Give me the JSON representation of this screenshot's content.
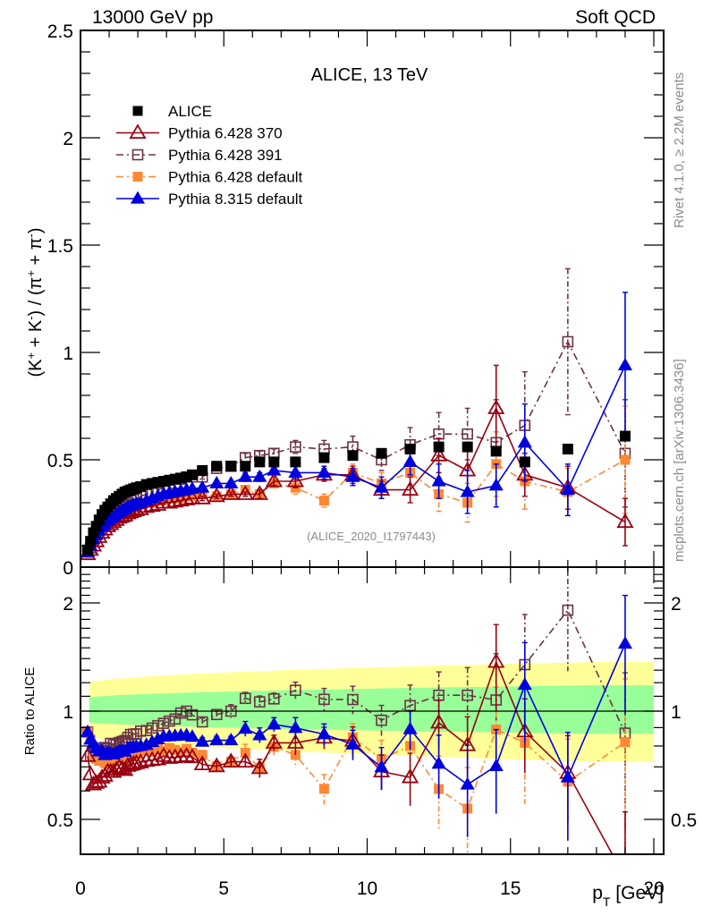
{
  "header": {
    "left": "13000 GeV pp",
    "right": "Soft QCD",
    "side_top": "Rivet 4.1.0, ≥ 2.2M events",
    "side_bottom": "mcplots.cern.ch [arXiv:1306.3436]"
  },
  "chart_data": [
    {
      "type": "scatter",
      "panel": "main",
      "title": "ALICE, 13 TeV",
      "analysis_label": "(ALICE_2020_I1797443)",
      "xlabel": "p_T [GeV]",
      "ylabel": "(K⁺ + K⁻) / (π⁺ + π⁻)",
      "xlim": [
        0,
        20.35
      ],
      "ylim": [
        0,
        2.5
      ],
      "yticks": [
        "0",
        "0.5",
        "1",
        "1.5",
        "2",
        "2.5"
      ],
      "xticks": [
        "0",
        "5",
        "10",
        "15",
        "20"
      ],
      "legend_position": "top-left",
      "series": [
        {
          "name": "ALICE",
          "style": "data",
          "color": "#000000",
          "marker": "filled-square",
          "x": [
            0.25,
            0.35,
            0.45,
            0.55,
            0.65,
            0.75,
            0.85,
            0.95,
            1.05,
            1.15,
            1.25,
            1.35,
            1.45,
            1.55,
            1.65,
            1.75,
            1.85,
            1.95,
            2.1,
            2.3,
            2.5,
            2.7,
            2.9,
            3.1,
            3.3,
            3.5,
            3.7,
            3.9,
            4.25,
            4.75,
            5.25,
            5.75,
            6.25,
            6.75,
            7.5,
            8.5,
            9.5,
            10.5,
            11.5,
            12.5,
            13.5,
            14.5,
            15.5,
            17,
            19
          ],
          "y": [
            0.08,
            0.12,
            0.16,
            0.19,
            0.22,
            0.245,
            0.265,
            0.28,
            0.295,
            0.31,
            0.32,
            0.33,
            0.34,
            0.35,
            0.355,
            0.36,
            0.365,
            0.37,
            0.375,
            0.385,
            0.39,
            0.395,
            0.4,
            0.405,
            0.41,
            0.415,
            0.42,
            0.43,
            0.45,
            0.47,
            0.47,
            0.47,
            0.49,
            0.49,
            0.49,
            0.51,
            0.52,
            0.53,
            0.55,
            0.56,
            0.56,
            0.54,
            0.49,
            0.55,
            0.61
          ]
        },
        {
          "name": "Pythia 6.428 370",
          "color": "#990011",
          "marker": "open-triangle",
          "line": "solid",
          "x": [
            0.25,
            0.35,
            0.45,
            0.55,
            0.65,
            0.75,
            0.85,
            0.95,
            1.05,
            1.15,
            1.25,
            1.35,
            1.45,
            1.55,
            1.65,
            1.75,
            1.85,
            1.95,
            2.1,
            2.3,
            2.5,
            2.7,
            2.9,
            3.1,
            3.3,
            3.5,
            3.7,
            3.9,
            4.25,
            4.75,
            5.25,
            5.75,
            6.25,
            6.75,
            7.5,
            8.5,
            9.5,
            10.5,
            11.5,
            12.5,
            13.5,
            14.5,
            15.5,
            17,
            19
          ],
          "y": [
            0.06,
            0.08,
            0.1,
            0.12,
            0.14,
            0.16,
            0.175,
            0.19,
            0.2,
            0.21,
            0.22,
            0.23,
            0.235,
            0.24,
            0.25,
            0.255,
            0.26,
            0.265,
            0.27,
            0.28,
            0.285,
            0.29,
            0.3,
            0.3,
            0.305,
            0.31,
            0.315,
            0.32,
            0.32,
            0.33,
            0.34,
            0.34,
            0.34,
            0.4,
            0.4,
            0.43,
            0.43,
            0.36,
            0.36,
            0.52,
            0.45,
            0.74,
            0.43,
            0.37,
            0.21
          ],
          "yerr": [
            0,
            0,
            0,
            0,
            0,
            0,
            0,
            0,
            0,
            0,
            0,
            0,
            0,
            0,
            0,
            0,
            0,
            0,
            0,
            0,
            0,
            0,
            0,
            0,
            0,
            0,
            0,
            0,
            0.01,
            0.01,
            0.01,
            0.01,
            0.02,
            0.02,
            0.03,
            0.03,
            0.04,
            0.04,
            0.06,
            0.08,
            0.09,
            0.2,
            0.1,
            0.1,
            0.11
          ]
        },
        {
          "name": "Pythia 6.428 391",
          "color": "#6b3344",
          "marker": "open-square",
          "line": "dash-dot",
          "x": [
            0.25,
            0.35,
            0.45,
            0.55,
            0.65,
            0.75,
            0.85,
            0.95,
            1.05,
            1.15,
            1.25,
            1.35,
            1.45,
            1.55,
            1.65,
            1.75,
            1.85,
            1.95,
            2.1,
            2.3,
            2.5,
            2.7,
            2.9,
            3.1,
            3.3,
            3.5,
            3.7,
            3.9,
            4.25,
            4.75,
            5.25,
            5.75,
            6.25,
            6.75,
            7.5,
            8.5,
            9.5,
            10.5,
            11.5,
            12.5,
            13.5,
            14.5,
            15.5,
            17,
            19
          ],
          "y": [
            0.07,
            0.09,
            0.12,
            0.15,
            0.17,
            0.19,
            0.21,
            0.22,
            0.24,
            0.25,
            0.26,
            0.27,
            0.28,
            0.29,
            0.3,
            0.31,
            0.315,
            0.32,
            0.33,
            0.34,
            0.35,
            0.36,
            0.37,
            0.38,
            0.39,
            0.41,
            0.42,
            0.42,
            0.42,
            0.46,
            0.47,
            0.51,
            0.52,
            0.53,
            0.56,
            0.55,
            0.56,
            0.5,
            0.57,
            0.62,
            0.62,
            0.58,
            0.66,
            1.05,
            0.53
          ],
          "yerr": [
            0,
            0,
            0,
            0,
            0,
            0,
            0,
            0,
            0,
            0,
            0,
            0,
            0,
            0,
            0,
            0,
            0,
            0,
            0,
            0,
            0,
            0,
            0,
            0,
            0,
            0,
            0,
            0,
            0.01,
            0.01,
            0.02,
            0.02,
            0.02,
            0.02,
            0.03,
            0.04,
            0.05,
            0.05,
            0.08,
            0.1,
            0.12,
            0.2,
            0.25,
            0.34,
            0.25
          ]
        },
        {
          "name": "Pythia 6.428 default",
          "color": "#ff8833",
          "marker": "filled-square",
          "line": "dash-dot",
          "x": [
            0.25,
            0.35,
            0.45,
            0.55,
            0.65,
            0.75,
            0.85,
            0.95,
            1.05,
            1.15,
            1.25,
            1.35,
            1.45,
            1.55,
            1.65,
            1.75,
            1.85,
            1.95,
            2.1,
            2.3,
            2.5,
            2.7,
            2.9,
            3.1,
            3.3,
            3.5,
            3.7,
            3.9,
            4.25,
            4.75,
            5.25,
            5.75,
            6.25,
            6.75,
            7.5,
            8.5,
            9.5,
            10.5,
            11.5,
            12.5,
            13.5,
            14.5,
            15.5,
            17,
            19
          ],
          "y": [
            0.07,
            0.1,
            0.12,
            0.14,
            0.16,
            0.18,
            0.19,
            0.2,
            0.215,
            0.225,
            0.235,
            0.245,
            0.25,
            0.26,
            0.265,
            0.27,
            0.275,
            0.28,
            0.29,
            0.3,
            0.3,
            0.31,
            0.31,
            0.32,
            0.32,
            0.32,
            0.33,
            0.33,
            0.34,
            0.33,
            0.34,
            0.36,
            0.34,
            0.39,
            0.37,
            0.31,
            0.44,
            0.39,
            0.44,
            0.34,
            0.3,
            0.48,
            0.4,
            0.35,
            0.5
          ],
          "yerr": [
            0,
            0,
            0,
            0,
            0,
            0,
            0,
            0,
            0,
            0,
            0,
            0,
            0,
            0,
            0,
            0,
            0,
            0,
            0,
            0,
            0,
            0,
            0,
            0,
            0,
            0,
            0,
            0,
            0.01,
            0.01,
            0.01,
            0.02,
            0.02,
            0.02,
            0.03,
            0.03,
            0.04,
            0.05,
            0.06,
            0.08,
            0.09,
            0.15,
            0.13,
            0.11,
            0.25
          ]
        },
        {
          "name": "Pythia 8.315 default",
          "color": "#0000dd",
          "marker": "filled-triangle",
          "line": "solid",
          "x": [
            0.25,
            0.35,
            0.45,
            0.55,
            0.65,
            0.75,
            0.85,
            0.95,
            1.05,
            1.15,
            1.25,
            1.35,
            1.45,
            1.55,
            1.65,
            1.75,
            1.85,
            1.95,
            2.1,
            2.3,
            2.5,
            2.7,
            2.9,
            3.1,
            3.3,
            3.5,
            3.7,
            3.9,
            4.25,
            4.75,
            5.25,
            5.75,
            6.25,
            6.75,
            7.5,
            8.5,
            9.5,
            10.5,
            11.5,
            12.5,
            13.5,
            14.5,
            15.5,
            17,
            19
          ],
          "y": [
            0.07,
            0.1,
            0.13,
            0.15,
            0.17,
            0.19,
            0.2,
            0.215,
            0.225,
            0.235,
            0.245,
            0.255,
            0.265,
            0.27,
            0.28,
            0.285,
            0.29,
            0.295,
            0.3,
            0.31,
            0.32,
            0.33,
            0.34,
            0.345,
            0.35,
            0.355,
            0.36,
            0.365,
            0.37,
            0.39,
            0.39,
            0.42,
            0.42,
            0.45,
            0.44,
            0.44,
            0.42,
            0.37,
            0.49,
            0.4,
            0.35,
            0.38,
            0.58,
            0.36,
            0.94
          ],
          "yerr": [
            0,
            0,
            0,
            0,
            0,
            0,
            0,
            0,
            0,
            0,
            0,
            0,
            0,
            0,
            0,
            0,
            0,
            0,
            0,
            0,
            0,
            0,
            0,
            0,
            0,
            0,
            0,
            0,
            0.01,
            0.01,
            0.01,
            0.02,
            0.02,
            0.02,
            0.03,
            0.03,
            0.04,
            0.05,
            0.06,
            0.08,
            0.1,
            0.1,
            0.18,
            0.12,
            0.34
          ]
        }
      ]
    },
    {
      "type": "scatter",
      "panel": "ratio",
      "ylabel": "Ratio to ALICE",
      "xlabel": "p_T [GeV]",
      "yscale": "log",
      "ylim": [
        0.4,
        2.5
      ],
      "yticks": [
        "0.5",
        "1",
        "2"
      ],
      "xticks": [
        "0",
        "5",
        "10",
        "15",
        "20"
      ],
      "bands": [
        {
          "name": "stat uncertainty",
          "color": "#99ff99",
          "half_width_low_pt": 0.08,
          "half_width_high_pt": 0.18
        },
        {
          "name": "total uncertainty",
          "color": "#ffff99",
          "half_width_low_pt": 0.18,
          "half_width_high_pt": 0.37
        }
      ]
    }
  ]
}
